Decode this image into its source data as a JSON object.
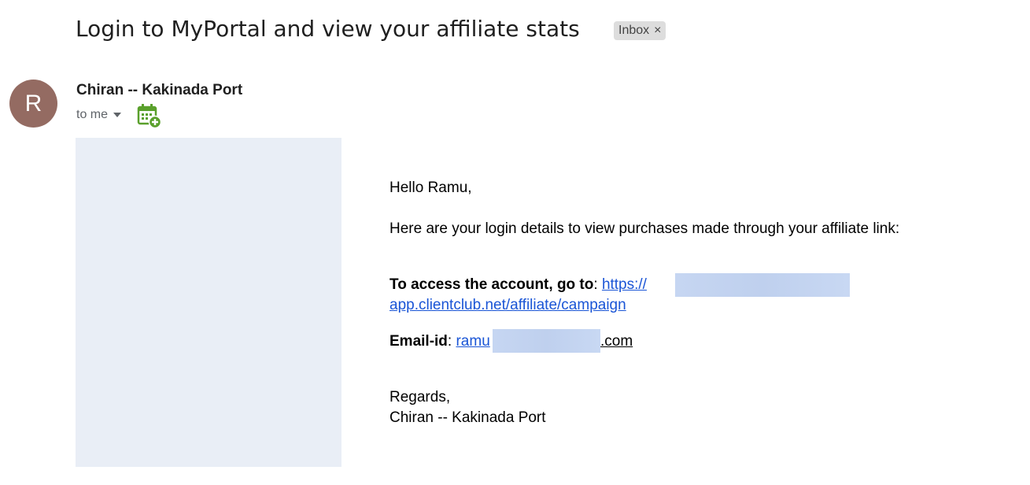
{
  "subject": "Login to MyPortal and view your affiliate stats",
  "label_badge": {
    "text": "Inbox",
    "close": "×"
  },
  "sender": {
    "avatar_letter": "R",
    "avatar_color": "#946b62",
    "name": "Chiran -- Kakinada Port",
    "recipient": "to me"
  },
  "icons": {
    "calendar": "calendar-add-icon",
    "dropdown": "caret-down-icon"
  },
  "body": {
    "greeting": "Hello Ramu,",
    "intro": "Here are your login details to view purchases made through your affiliate link:",
    "access_label": "To access the account, go to",
    "access_link_start": "https://",
    "access_link_end": "app.clientclub.net/affiliate/campaign",
    "email_label": "Email-id",
    "email_start": "ramu",
    "email_end": ".com",
    "regards": "Regards,",
    "signature": "Chiran -- Kakinada Port"
  }
}
